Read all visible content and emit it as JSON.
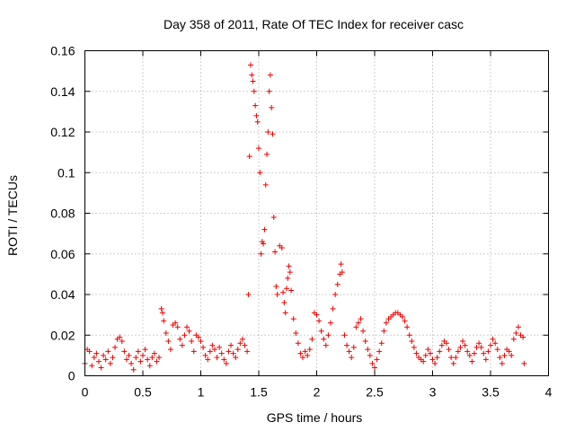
{
  "chart_data": {
    "type": "scatter",
    "title": "Day 358 of 2011, Rate Of TEC Index for receiver casc",
    "xlabel": "GPS time / hours",
    "ylabel": "ROTI / TECUs",
    "xlim": [
      0,
      4
    ],
    "ylim": [
      0,
      0.16
    ],
    "xticks": [
      0,
      0.5,
      1,
      1.5,
      2,
      2.5,
      3,
      3.5,
      4
    ],
    "xtick_labels": [
      "0",
      "0.5",
      "1",
      "1.5",
      "2",
      "2.5",
      "3",
      "3.5",
      "4"
    ],
    "yticks": [
      0,
      0.02,
      0.04,
      0.06,
      0.08,
      0.1,
      0.12,
      0.14,
      0.16
    ],
    "ytick_labels": [
      "0",
      "0.02",
      "0.04",
      "0.06",
      "0.08",
      "0.1",
      "0.12",
      "0.14",
      "0.16"
    ],
    "grid": true,
    "marker": "plus",
    "marker_color": "#ee0000",
    "series": [
      {
        "name": "ROTI",
        "points": [
          [
            0.0,
            0.006
          ],
          [
            0.02,
            0.013
          ],
          [
            0.04,
            0.012
          ],
          [
            0.06,
            0.005
          ],
          [
            0.08,
            0.009
          ],
          [
            0.1,
            0.011
          ],
          [
            0.12,
            0.007
          ],
          [
            0.14,
            0.004
          ],
          [
            0.16,
            0.01
          ],
          [
            0.18,
            0.008
          ],
          [
            0.2,
            0.012
          ],
          [
            0.22,
            0.006
          ],
          [
            0.24,
            0.009
          ],
          [
            0.26,
            0.014
          ],
          [
            0.28,
            0.018
          ],
          [
            0.3,
            0.019
          ],
          [
            0.32,
            0.017
          ],
          [
            0.34,
            0.012
          ],
          [
            0.36,
            0.008
          ],
          [
            0.38,
            0.01
          ],
          [
            0.4,
            0.006
          ],
          [
            0.42,
            0.003
          ],
          [
            0.44,
            0.009
          ],
          [
            0.46,
            0.012
          ],
          [
            0.48,
            0.007
          ],
          [
            0.5,
            0.01
          ],
          [
            0.52,
            0.013
          ],
          [
            0.54,
            0.008
          ],
          [
            0.56,
            0.005
          ],
          [
            0.58,
            0.009
          ],
          [
            0.6,
            0.011
          ],
          [
            0.62,
            0.007
          ],
          [
            0.64,
            0.009
          ],
          [
            0.66,
            0.033
          ],
          [
            0.67,
            0.031
          ],
          [
            0.68,
            0.027
          ],
          [
            0.7,
            0.021
          ],
          [
            0.72,
            0.017
          ],
          [
            0.74,
            0.013
          ],
          [
            0.76,
            0.025
          ],
          [
            0.78,
            0.026
          ],
          [
            0.8,
            0.024
          ],
          [
            0.82,
            0.018
          ],
          [
            0.84,
            0.015
          ],
          [
            0.86,
            0.02
          ],
          [
            0.88,
            0.024
          ],
          [
            0.9,
            0.022
          ],
          [
            0.92,
            0.017
          ],
          [
            0.94,
            0.012
          ],
          [
            0.96,
            0.02
          ],
          [
            0.98,
            0.019
          ],
          [
            1.0,
            0.017
          ],
          [
            1.02,
            0.014
          ],
          [
            1.04,
            0.01
          ],
          [
            1.06,
            0.008
          ],
          [
            1.08,
            0.012
          ],
          [
            1.1,
            0.015
          ],
          [
            1.12,
            0.013
          ],
          [
            1.14,
            0.009
          ],
          [
            1.16,
            0.014
          ],
          [
            1.18,
            0.011
          ],
          [
            1.2,
            0.008
          ],
          [
            1.22,
            0.006
          ],
          [
            1.24,
            0.012
          ],
          [
            1.26,
            0.015
          ],
          [
            1.28,
            0.011
          ],
          [
            1.3,
            0.009
          ],
          [
            1.32,
            0.013
          ],
          [
            1.34,
            0.016
          ],
          [
            1.36,
            0.018
          ],
          [
            1.38,
            0.015
          ],
          [
            1.4,
            0.012
          ],
          [
            1.41,
            0.04
          ],
          [
            1.42,
            0.108
          ],
          [
            1.43,
            0.153
          ],
          [
            1.44,
            0.148
          ],
          [
            1.45,
            0.145
          ],
          [
            1.46,
            0.14
          ],
          [
            1.47,
            0.133
          ],
          [
            1.48,
            0.128
          ],
          [
            1.49,
            0.125
          ],
          [
            1.5,
            0.112
          ],
          [
            1.51,
            0.1
          ],
          [
            1.52,
            0.06
          ],
          [
            1.53,
            0.066
          ],
          [
            1.54,
            0.065
          ],
          [
            1.55,
            0.072
          ],
          [
            1.56,
            0.094
          ],
          [
            1.57,
            0.109
          ],
          [
            1.58,
            0.12
          ],
          [
            1.59,
            0.14
          ],
          [
            1.6,
            0.148
          ],
          [
            1.61,
            0.132
          ],
          [
            1.62,
            0.119
          ],
          [
            1.63,
            0.078
          ],
          [
            1.64,
            0.061
          ],
          [
            1.65,
            0.044
          ],
          [
            1.66,
            0.04
          ],
          [
            1.68,
            0.064
          ],
          [
            1.7,
            0.063
          ],
          [
            1.71,
            0.041
          ],
          [
            1.72,
            0.036
          ],
          [
            1.73,
            0.031
          ],
          [
            1.74,
            0.043
          ],
          [
            1.75,
            0.048
          ],
          [
            1.76,
            0.054
          ],
          [
            1.77,
            0.051
          ],
          [
            1.78,
            0.042
          ],
          [
            1.8,
            0.028
          ],
          [
            1.82,
            0.021
          ],
          [
            1.84,
            0.016
          ],
          [
            1.86,
            0.011
          ],
          [
            1.88,
            0.009
          ],
          [
            1.9,
            0.012
          ],
          [
            1.92,
            0.01
          ],
          [
            1.94,
            0.013
          ],
          [
            1.96,
            0.018
          ],
          [
            1.98,
            0.031
          ],
          [
            2.0,
            0.03
          ],
          [
            2.02,
            0.027
          ],
          [
            2.04,
            0.022
          ],
          [
            2.06,
            0.018
          ],
          [
            2.08,
            0.015
          ],
          [
            2.1,
            0.02
          ],
          [
            2.12,
            0.026
          ],
          [
            2.14,
            0.033
          ],
          [
            2.16,
            0.04
          ],
          [
            2.18,
            0.045
          ],
          [
            2.2,
            0.05
          ],
          [
            2.21,
            0.055
          ],
          [
            2.22,
            0.051
          ],
          [
            2.24,
            0.02
          ],
          [
            2.26,
            0.015
          ],
          [
            2.28,
            0.012
          ],
          [
            2.3,
            0.009
          ],
          [
            2.32,
            0.014
          ],
          [
            2.34,
            0.024
          ],
          [
            2.36,
            0.026
          ],
          [
            2.38,
            0.028
          ],
          [
            2.4,
            0.022
          ],
          [
            2.42,
            0.017
          ],
          [
            2.44,
            0.013
          ],
          [
            2.46,
            0.01
          ],
          [
            2.48,
            0.006
          ],
          [
            2.5,
            0.004
          ],
          [
            2.52,
            0.008
          ],
          [
            2.54,
            0.012
          ],
          [
            2.56,
            0.016
          ],
          [
            2.58,
            0.022
          ],
          [
            2.6,
            0.026
          ],
          [
            2.62,
            0.028
          ],
          [
            2.64,
            0.029
          ],
          [
            2.66,
            0.03
          ],
          [
            2.68,
            0.031
          ],
          [
            2.7,
            0.031
          ],
          [
            2.72,
            0.03
          ],
          [
            2.74,
            0.029
          ],
          [
            2.76,
            0.027
          ],
          [
            2.78,
            0.024
          ],
          [
            2.8,
            0.02
          ],
          [
            2.82,
            0.017
          ],
          [
            2.84,
            0.014
          ],
          [
            2.86,
            0.011
          ],
          [
            2.88,
            0.009
          ],
          [
            2.9,
            0.008
          ],
          [
            2.92,
            0.007
          ],
          [
            2.94,
            0.01
          ],
          [
            2.96,
            0.013
          ],
          [
            2.98,
            0.011
          ],
          [
            3.0,
            0.008
          ],
          [
            3.02,
            0.006
          ],
          [
            3.04,
            0.009
          ],
          [
            3.06,
            0.012
          ],
          [
            3.08,
            0.015
          ],
          [
            3.1,
            0.017
          ],
          [
            3.12,
            0.016
          ],
          [
            3.14,
            0.013
          ],
          [
            3.16,
            0.009
          ],
          [
            3.18,
            0.006
          ],
          [
            3.2,
            0.009
          ],
          [
            3.22,
            0.012
          ],
          [
            3.24,
            0.014
          ],
          [
            3.26,
            0.017
          ],
          [
            3.28,
            0.015
          ],
          [
            3.3,
            0.012
          ],
          [
            3.32,
            0.01
          ],
          [
            3.34,
            0.007
          ],
          [
            3.36,
            0.011
          ],
          [
            3.38,
            0.014
          ],
          [
            3.4,
            0.016
          ],
          [
            3.42,
            0.014
          ],
          [
            3.44,
            0.011
          ],
          [
            3.46,
            0.008
          ],
          [
            3.48,
            0.012
          ],
          [
            3.5,
            0.015
          ],
          [
            3.52,
            0.018
          ],
          [
            3.54,
            0.016
          ],
          [
            3.56,
            0.013
          ],
          [
            3.58,
            0.009
          ],
          [
            3.6,
            0.006
          ],
          [
            3.62,
            0.01
          ],
          [
            3.64,
            0.013
          ],
          [
            3.66,
            0.012
          ],
          [
            3.68,
            0.01
          ],
          [
            3.7,
            0.018
          ],
          [
            3.72,
            0.021
          ],
          [
            3.74,
            0.024
          ],
          [
            3.76,
            0.02
          ],
          [
            3.78,
            0.019
          ],
          [
            3.79,
            0.006
          ]
        ]
      }
    ]
  }
}
